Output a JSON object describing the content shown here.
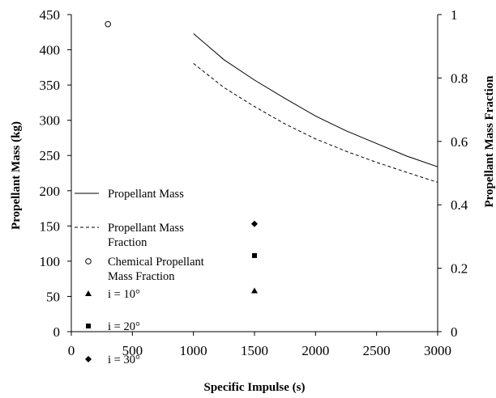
{
  "chart_data": {
    "type": "line",
    "xlabel": "Specific Impulse (s)",
    "ylabel": "Propellant Mass (kg)",
    "y2label": "Propellant Mass Fraction",
    "xlim": [
      0,
      3000
    ],
    "ylim": [
      0,
      450
    ],
    "y2lim": [
      0,
      1
    ],
    "xticks": [
      "0",
      "500",
      "1000",
      "1500",
      "2000",
      "2500",
      "3000"
    ],
    "yticks": [
      "0",
      "50",
      "100",
      "150",
      "200",
      "250",
      "300",
      "350",
      "400",
      "450"
    ],
    "y2ticks": [
      "0",
      "0.2",
      "0.4",
      "0.6",
      "0.8",
      "1"
    ],
    "grid": false,
    "legend_position": "left",
    "series": [
      {
        "name": "Propellant Mass",
        "axis": "left",
        "style": "solid",
        "x": [
          1000,
          1250,
          1500,
          1750,
          2000,
          2250,
          2500,
          2750,
          3000
        ],
        "y": [
          423,
          386,
          357,
          331,
          306,
          285,
          267,
          249,
          234
        ]
      },
      {
        "name": "Propellant Mass Fraction",
        "axis": "right",
        "style": "dashed",
        "x": [
          1000,
          1250,
          1500,
          1750,
          2000,
          2250,
          2500,
          2750,
          3000
        ],
        "y": [
          0.846,
          0.77,
          0.71,
          0.655,
          0.608,
          0.569,
          0.534,
          0.502,
          0.471
        ]
      },
      {
        "name": "Chemical Propellant Mass Fraction",
        "axis": "right",
        "style": "marker",
        "marker": "circle-open",
        "x": [
          300
        ],
        "y": [
          0.97
        ]
      },
      {
        "name": "i = 10°",
        "axis": "left",
        "style": "marker",
        "marker": "triangle",
        "x": [
          1500
        ],
        "y": [
          58
        ]
      },
      {
        "name": "i = 20°",
        "axis": "left",
        "style": "marker",
        "marker": "square",
        "x": [
          1500
        ],
        "y": [
          108
        ]
      },
      {
        "name": "i = 30°",
        "axis": "left",
        "style": "marker",
        "marker": "diamond",
        "x": [
          1500
        ],
        "y": [
          153
        ]
      }
    ],
    "legend": [
      {
        "label": "Propellant Mass",
        "symbol": "line-solid"
      },
      {
        "label_lines": [
          "Propellant Mass",
          "Fraction"
        ],
        "symbol": "line-dashed"
      },
      {
        "label_lines": [
          "Chemical Propellant",
          "Mass Fraction"
        ],
        "symbol": "circle-open"
      },
      {
        "label": "i = 10°",
        "symbol": "triangle"
      },
      {
        "label": "i = 20°",
        "symbol": "square"
      },
      {
        "label": "i = 30°",
        "symbol": "diamond"
      }
    ]
  }
}
